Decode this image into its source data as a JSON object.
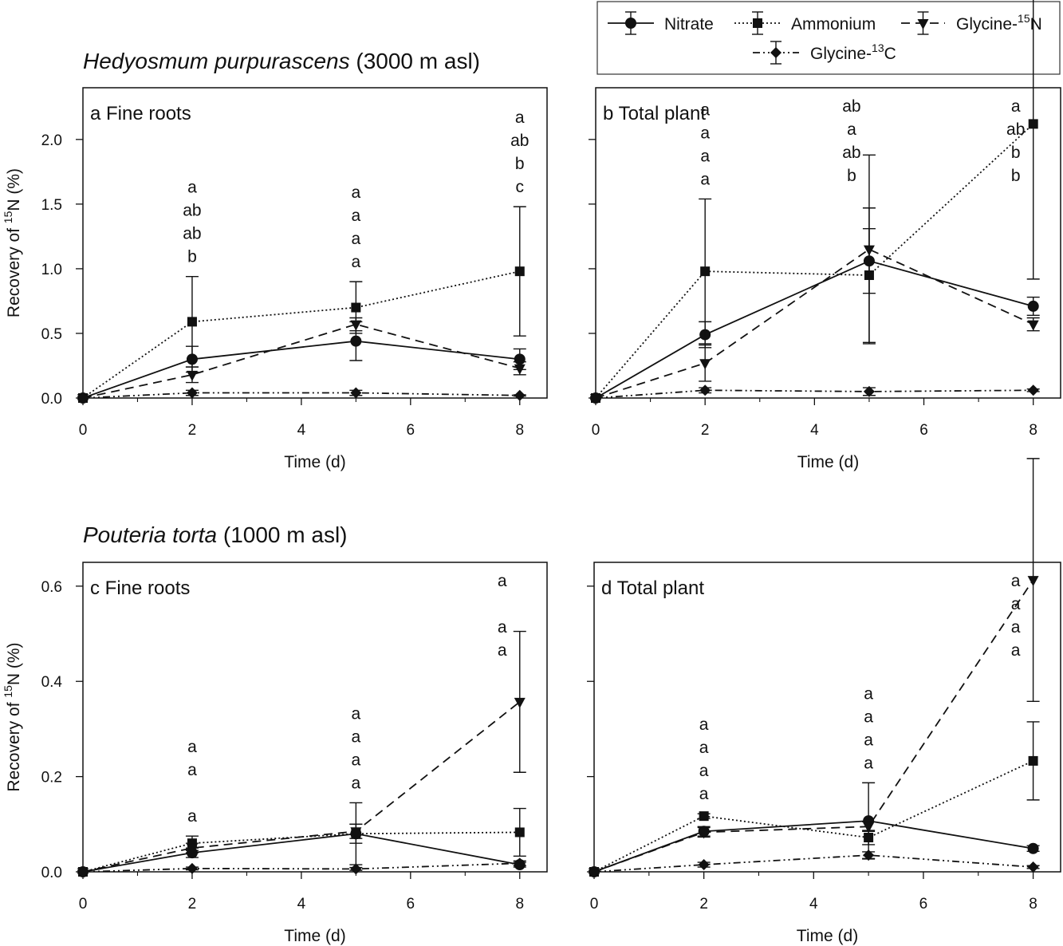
{
  "titles": {
    "top": {
      "species": "Hedyosmum purpurascens",
      "elev": " (3000 m asl)"
    },
    "bottom": {
      "species": "Pouteria torta",
      "elev": " (1000 m asl)"
    }
  },
  "legend": {
    "items": [
      {
        "key": "nitrate",
        "label": "Nitrate"
      },
      {
        "key": "ammonium",
        "label": "Ammonium"
      },
      {
        "key": "gly15",
        "label": "Glycine-",
        "sup": "15",
        "tail": "N"
      },
      {
        "key": "gly13",
        "label": "Glycine-",
        "sup": "13",
        "tail": "C"
      }
    ]
  },
  "chart_data": [
    {
      "id": "a",
      "type": "line",
      "panel_label": "a  Fine roots",
      "xlabel": "Time (d)",
      "ylabel": "Recovery of 15N (%)",
      "xlim": [
        0,
        8.5
      ],
      "ylim": [
        0,
        2.4
      ],
      "xticks": [
        0,
        2,
        4,
        6,
        8
      ],
      "yticks": [
        0.0,
        0.5,
        1.0,
        1.5,
        2.0
      ],
      "ytick_labels": [
        "0.0",
        "0.5",
        "1.0",
        "1.5",
        "2.0"
      ],
      "x": [
        0,
        2,
        5,
        8
      ],
      "series": [
        {
          "name": "Nitrate",
          "values": [
            0,
            0.3,
            0.44,
            0.3
          ],
          "err": [
            0,
            0.1,
            0.15,
            0.08
          ]
        },
        {
          "name": "Ammonium",
          "values": [
            0,
            0.59,
            0.7,
            0.98
          ],
          "err": [
            0,
            0.35,
            0.2,
            0.5
          ]
        },
        {
          "name": "Glycine-15N",
          "values": [
            0,
            0.18,
            0.57,
            0.23
          ],
          "err": [
            0,
            0.06,
            0.05,
            0.05
          ]
        },
        {
          "name": "Glycine-13C",
          "values": [
            0,
            0.04,
            0.04,
            0.02
          ],
          "err": [
            0,
            0.02,
            0.02,
            0.005
          ]
        }
      ],
      "annotations": [
        {
          "x": 2,
          "letters": [
            "a",
            "ab",
            "ab",
            "b"
          ]
        },
        {
          "x": 5,
          "letters": [
            "a",
            "a",
            "a",
            "a"
          ]
        },
        {
          "x": 8,
          "letters": [
            "a",
            "ab",
            "b",
            "c"
          ]
        }
      ]
    },
    {
      "id": "b",
      "type": "line",
      "panel_label": "b  Total plant",
      "xlabel": "Time (d)",
      "ylabel": "",
      "xlim": [
        0,
        8.5
      ],
      "ylim": [
        0,
        2.4
      ],
      "xticks": [
        0,
        2,
        4,
        6,
        8
      ],
      "yticks": [
        0.0,
        0.5,
        1.0,
        1.5,
        2.0
      ],
      "ytick_labels": [],
      "x": [
        0,
        2,
        5,
        8
      ],
      "series": [
        {
          "name": "Nitrate",
          "values": [
            0,
            0.49,
            1.06,
            0.71
          ],
          "err": [
            0,
            0.1,
            0.25,
            0.07
          ]
        },
        {
          "name": "Ammonium",
          "values": [
            0,
            0.98,
            0.95,
            2.12
          ],
          "err": [
            0,
            0.56,
            0.52,
            1.2
          ]
        },
        {
          "name": "Glycine-15N",
          "values": [
            0,
            0.27,
            1.15,
            0.57
          ],
          "err": [
            0,
            0.14,
            0.73,
            0.05
          ]
        },
        {
          "name": "Glycine-13C",
          "values": [
            0,
            0.06,
            0.05,
            0.06
          ],
          "err": [
            0,
            0.02,
            0.03,
            0.01
          ]
        }
      ],
      "annotations": [
        {
          "x": 2,
          "letters": [
            "a",
            "a",
            "a",
            "a"
          ]
        },
        {
          "x": 5,
          "letters": [
            "ab",
            "a",
            "ab",
            "b"
          ]
        },
        {
          "x": 8,
          "letters": [
            "a",
            "ab",
            "b",
            "b"
          ]
        }
      ]
    },
    {
      "id": "c",
      "type": "line",
      "panel_label": "c  Fine roots",
      "xlabel": "Time (d)",
      "ylabel": "Recovery of 15N (%)",
      "xlim": [
        0,
        8.5
      ],
      "ylim": [
        0,
        0.65
      ],
      "xticks": [
        0,
        2,
        4,
        6,
        8
      ],
      "yticks": [
        0.0,
        0.2,
        0.4,
        0.6
      ],
      "ytick_labels": [
        "0.0",
        "0.2",
        "0.4",
        "0.6"
      ],
      "x": [
        0,
        2,
        5,
        8
      ],
      "series": [
        {
          "name": "Nitrate",
          "values": [
            0,
            0.04,
            0.08,
            0.015
          ],
          "err": [
            0,
            0.01,
            0.02,
            0.005
          ]
        },
        {
          "name": "Ammonium",
          "values": [
            0,
            0.06,
            0.08,
            0.083
          ],
          "err": [
            0,
            0.015,
            0.065,
            0.05
          ]
        },
        {
          "name": "Glycine-15N",
          "values": [
            0,
            0.05,
            0.085,
            0.357
          ],
          "err": [
            0,
            0.01,
            0.015,
            0.148
          ]
        },
        {
          "name": "Glycine-13C",
          "values": [
            0,
            0.007,
            0.006,
            0.018
          ],
          "err": [
            0,
            0.003,
            0.003,
            0.005
          ]
        }
      ],
      "annotations": [
        {
          "x": 2,
          "letters": [
            "a",
            "a",
            "",
            "a"
          ]
        },
        {
          "x": 5,
          "letters": [
            "a",
            "a",
            "a",
            "a"
          ]
        },
        {
          "x": 8,
          "letters": [
            "a",
            "",
            "a",
            "a"
          ]
        }
      ]
    },
    {
      "id": "d",
      "type": "line",
      "panel_label": "d  Total plant",
      "xlabel": "Time (d)",
      "ylabel": "",
      "xlim": [
        0,
        8.5
      ],
      "ylim": [
        0,
        0.65
      ],
      "xticks": [
        0,
        2,
        4,
        6,
        8
      ],
      "yticks": [
        0.0,
        0.2,
        0.4,
        0.6
      ],
      "ytick_labels": [],
      "x": [
        0,
        2,
        5,
        8
      ],
      "series": [
        {
          "name": "Nitrate",
          "values": [
            0,
            0.085,
            0.107,
            0.049
          ],
          "err": [
            0,
            0.01,
            0.08,
            0.006
          ]
        },
        {
          "name": "Ammonium",
          "values": [
            0,
            0.117,
            0.072,
            0.233
          ],
          "err": [
            0,
            0.005,
            0.015,
            0.082
          ]
        },
        {
          "name": "Glycine-15N",
          "values": [
            0,
            0.083,
            0.095,
            0.613
          ],
          "err": [
            0,
            0.01,
            0.01,
            0.255
          ]
        },
        {
          "name": "Glycine-13C",
          "values": [
            0,
            0.015,
            0.035,
            0.01
          ],
          "err": [
            0,
            0.005,
            0.007,
            0.003
          ]
        }
      ],
      "annotations": [
        {
          "x": 2,
          "letters": [
            "a",
            "a",
            "a",
            "a"
          ]
        },
        {
          "x": 5,
          "letters": [
            "a",
            "a",
            "a",
            "a"
          ]
        },
        {
          "x": 8,
          "letters": [
            "a",
            "a",
            "a",
            "a"
          ]
        }
      ]
    }
  ]
}
